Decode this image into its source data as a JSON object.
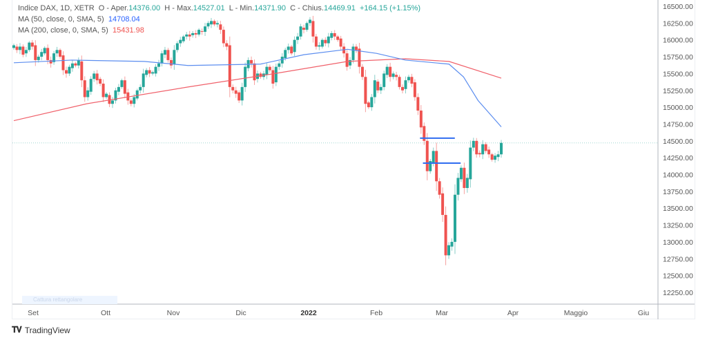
{
  "legend": {
    "symbol": "Indice DAX, 1D, XETR",
    "open_label": "O - Aper.",
    "open": "14376.00",
    "high_label": "H - Max.",
    "high": "14527.01",
    "low_label": "L - Min.",
    "low": "14371.90",
    "close_label": "C - Chius.",
    "close": "14469.91",
    "change": "+164.15 (+1.15%)",
    "ma50_label": "MA (50, close, 0, SMA, 5)",
    "ma50_value": "14708.04",
    "ma200_label": "MA (200, close, 0, SMA, 5)",
    "ma200_value": "15431.98"
  },
  "watermark": "Cattura rettangolare",
  "logo": {
    "mark": "TV",
    "name": "TradingView"
  },
  "chart_data": {
    "type": "candlestick",
    "colors": {
      "up": "#26a69a",
      "down": "#ef5350",
      "ma50": "#5b8def",
      "ma200": "#f0606a",
      "drawing": "#2f6cf0"
    },
    "ylim": [
      12100,
      16600
    ],
    "y_ticks": [
      "16500.00",
      "16250.00",
      "16000.00",
      "15750.00",
      "15500.00",
      "15250.00",
      "15000.00",
      "14750.00",
      "14500.00",
      "14250.00",
      "14000.00",
      "13750.00",
      "13500.00",
      "13250.00",
      "13000.00",
      "12750.00",
      "12500.00",
      "12250.00"
    ],
    "x_ticks": [
      {
        "label": "Set",
        "bold": false
      },
      {
        "label": "Ott",
        "bold": false
      },
      {
        "label": "Nov",
        "bold": false
      },
      {
        "label": "Dic",
        "bold": false
      },
      {
        "label": "2022",
        "bold": true
      },
      {
        "label": "Feb",
        "bold": false
      },
      {
        "label": "Mar",
        "bold": false
      },
      {
        "label": "Apr",
        "bold": false
      },
      {
        "label": "Maggio",
        "bold": false
      },
      {
        "label": "Giu",
        "bold": false
      }
    ],
    "first_open": 15880,
    "close": [
      15920,
      15850,
      15900,
      15780,
      15850,
      15960,
      15900,
      15700,
      15750,
      15820,
      15880,
      15700,
      15650,
      15800,
      15850,
      15750,
      15550,
      15500,
      15600,
      15650,
      15620,
      15700,
      15400,
      15150,
      15250,
      15420,
      15500,
      15400,
      15350,
      15150,
      15200,
      15050,
      15100,
      15250,
      15300,
      15400,
      15200,
      15100,
      15050,
      15150,
      15250,
      15300,
      15500,
      15550,
      15500,
      15520,
      15600,
      15650,
      15800,
      15850,
      15700,
      15620,
      15850,
      15950,
      16000,
      16050,
      16080,
      16050,
      16100,
      16080,
      16150,
      16120,
      16200,
      16250,
      16280,
      16230,
      16250,
      16150,
      15950,
      15900,
      15300,
      15250,
      15200,
      15100,
      15300,
      15600,
      15700,
      15650,
      15400,
      15500,
      15450,
      15500,
      15600,
      15550,
      15350,
      15600,
      15650,
      15750,
      15850,
      15900,
      15800,
      16000,
      16050,
      16200,
      16150,
      16250,
      16300,
      16050,
      15900,
      15920,
      16000,
      15950,
      16050,
      16100,
      16050,
      16000,
      15900,
      15800,
      15600,
      15700,
      15900,
      15850,
      15600,
      15450,
      15050,
      15000,
      15150,
      15400,
      15250,
      15300,
      15500,
      15600,
      15450,
      15500,
      15450,
      15300,
      15250,
      15400,
      15450,
      15350,
      15150,
      14950,
      14700,
      14500,
      14050,
      14200,
      14350,
      13900,
      13700,
      13400,
      12800,
      12950,
      13000,
      13700,
      13950,
      14100,
      13800,
      13950,
      14400,
      14500,
      14300,
      14300,
      14450,
      14350,
      14300,
      14220,
      14280,
      14300,
      14469.91
    ],
    "ma50": [
      [
        0,
        15660
      ],
      [
        20,
        15700
      ],
      [
        45,
        15680
      ],
      [
        60,
        15620
      ],
      [
        85,
        15640
      ],
      [
        100,
        15780
      ],
      [
        115,
        15860
      ],
      [
        125,
        15800
      ],
      [
        135,
        15700
      ],
      [
        150,
        15640
      ],
      [
        155,
        15450
      ],
      [
        160,
        15100
      ],
      [
        168,
        14708.04
      ]
    ],
    "ma200": [
      [
        0,
        14800
      ],
      [
        25,
        15050
      ],
      [
        60,
        15300
      ],
      [
        90,
        15500
      ],
      [
        115,
        15680
      ],
      [
        135,
        15720
      ],
      [
        150,
        15680
      ],
      [
        168,
        15431.98
      ]
    ],
    "last_price": 14469.91,
    "drawings": [
      {
        "from": 140,
        "to": 152,
        "price": 14540
      },
      {
        "from": 141,
        "to": 154,
        "price": 14170
      }
    ]
  }
}
